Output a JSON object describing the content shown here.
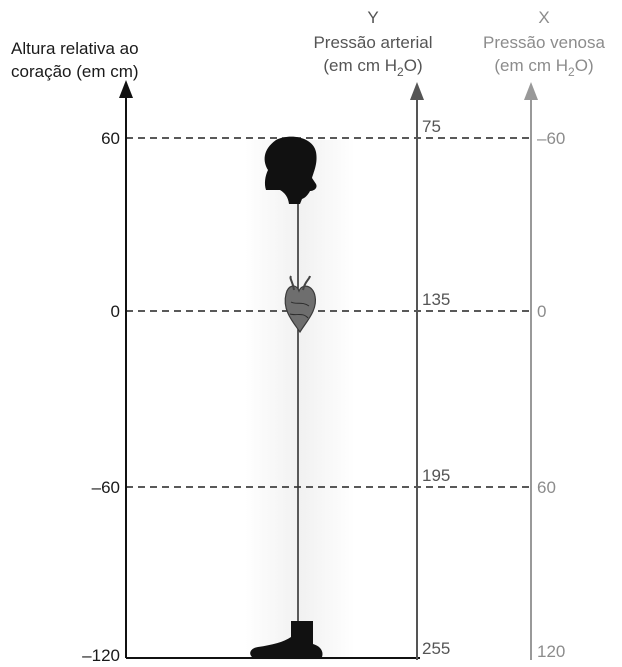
{
  "left_axis": {
    "title_line1": "Altura relativa ao",
    "title_line2": "coração (em cm)",
    "ticks": [
      "60",
      "0",
      "–60",
      "–120"
    ]
  },
  "y_axis": {
    "letter": "Y",
    "title": "Pressão arterial",
    "unit": {
      "pre": "(em cm H",
      "sub": "2",
      "post": "O)"
    },
    "values": [
      "75",
      "135",
      "195",
      "255"
    ],
    "color": "#555555"
  },
  "x_axis": {
    "letter": "X",
    "title": "Pressão venosa",
    "unit": {
      "pre": "(em cm H",
      "sub": "2",
      "post": "O)"
    },
    "values": [
      "–60",
      "0",
      "60",
      "120"
    ],
    "color": "#8c8c8c"
  },
  "figures": [
    "head-silhouette",
    "heart",
    "foot-silhouette"
  ]
}
